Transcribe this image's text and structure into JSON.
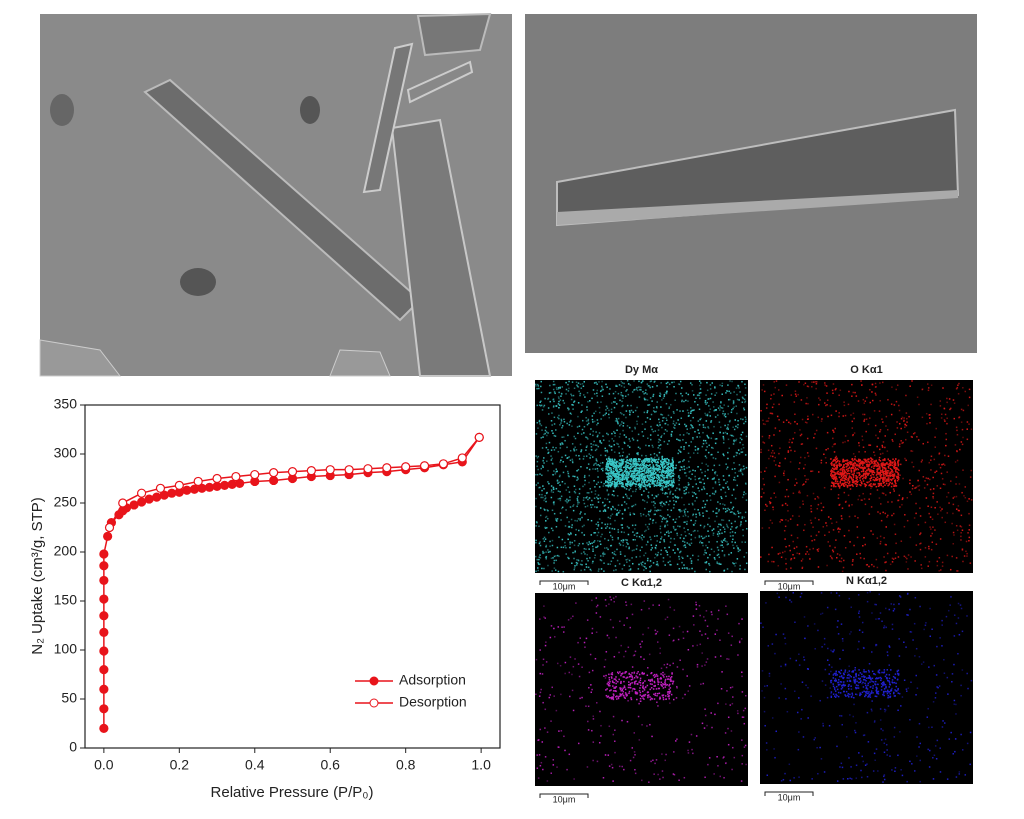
{
  "chart_data": {
    "type": "line",
    "xlabel": "Relative Pressure (P/P₀)",
    "ylabel": "N₂ Uptake (cm³/g, STP)",
    "xlim": [
      -0.05,
      1.05
    ],
    "ylim": [
      0,
      350
    ],
    "xticks": [
      {
        "value": 0,
        "label": "0.0"
      },
      0.2,
      0.4,
      0.6,
      0.8,
      {
        "value": 1,
        "label": "1.0"
      }
    ],
    "yticks": [
      0,
      50,
      100,
      150,
      200,
      250,
      300,
      350
    ],
    "legend": "lower right",
    "series": [
      {
        "name": "Adsorption",
        "color": "#e8141b",
        "marker": "filled",
        "x": [
          0,
          0,
          0,
          0,
          0,
          0,
          0,
          0,
          0,
          0,
          0,
          0.01,
          0.02,
          0.04,
          0.05,
          0.06,
          0.08,
          0.1,
          0.12,
          0.14,
          0.16,
          0.18,
          0.2,
          0.22,
          0.24,
          0.26,
          0.28,
          0.3,
          0.32,
          0.34,
          0.36,
          0.4,
          0.45,
          0.5,
          0.55,
          0.6,
          0.65,
          0.7,
          0.75,
          0.8,
          0.85,
          0.9,
          0.95,
          0.995
        ],
        "values": [
          20,
          40,
          60,
          80,
          99,
          118,
          135,
          152,
          171,
          186,
          198,
          216,
          230,
          238,
          242,
          245,
          248,
          251,
          254,
          256,
          258,
          260,
          261,
          263,
          264,
          265,
          266,
          267,
          268,
          269,
          270,
          272,
          273,
          275,
          277,
          278,
          279,
          281,
          282,
          284,
          286,
          289,
          292,
          317
        ]
      },
      {
        "name": "Desorption",
        "color": "#e8141b",
        "marker": "open",
        "x": [
          0.995,
          0.95,
          0.9,
          0.85,
          0.8,
          0.75,
          0.7,
          0.65,
          0.6,
          0.55,
          0.5,
          0.45,
          0.4,
          0.35,
          0.3,
          0.25,
          0.2,
          0.15,
          0.1,
          0.05,
          0.015
        ],
        "values": [
          317,
          296,
          290,
          288,
          287,
          286,
          285,
          284,
          284,
          283,
          282,
          281,
          279,
          277,
          275,
          272,
          268,
          265,
          260,
          250,
          225
        ]
      }
    ]
  },
  "eds_maps": [
    {
      "label": "Dy Mα",
      "scale_bar": "10μm",
      "color": "#39c6c6"
    },
    {
      "label": "O Kα1",
      "scale_bar": "10μm",
      "color": "#e01818"
    },
    {
      "label": "C Kα1,2",
      "scale_bar": "10μm",
      "color": "#c020c0"
    },
    {
      "label": "N Kα1,2",
      "scale_bar": "10μm",
      "color": "#2020d0"
    }
  ]
}
